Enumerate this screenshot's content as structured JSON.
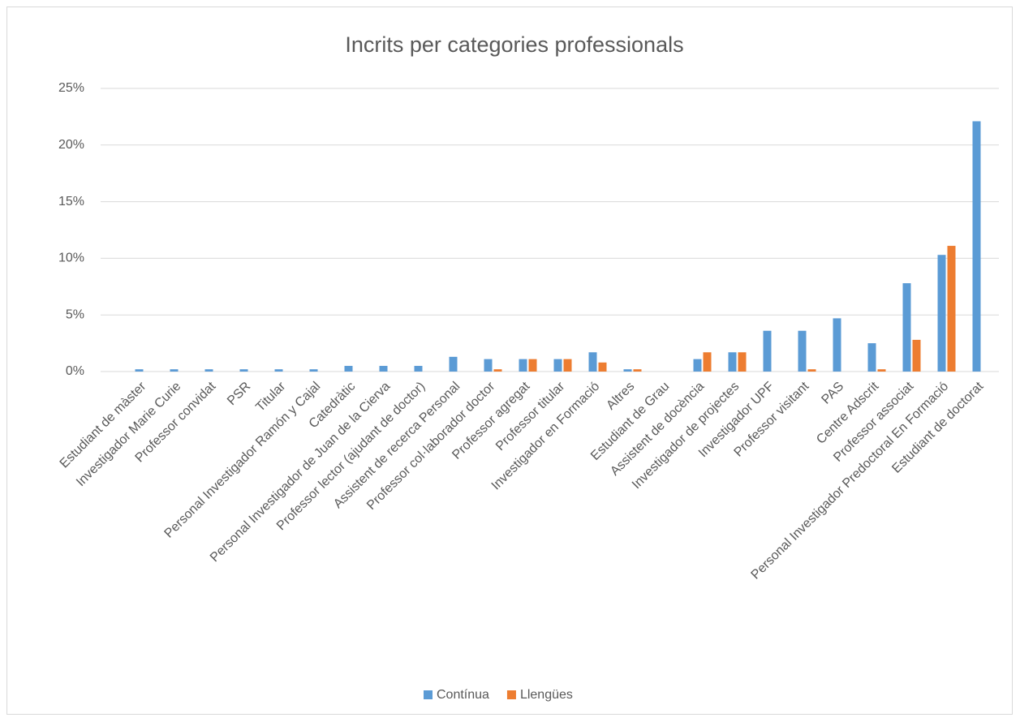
{
  "chart_data": {
    "type": "bar",
    "title": "Incrits per categories professionals",
    "categories": [
      "Estudiant de màster",
      "Investigador Marie Curie",
      "Professor convidat",
      "PSR",
      "Titular",
      "Personal Investigador Ramón y Cajal",
      "Catedràtic",
      "Personal Investigador de Juan de la Cierva",
      "Professor lector (ajudant de doctor)",
      "Assistent de recerca Personal",
      "Professor col·laborador doctor",
      "Professor agregat",
      "Professor titular",
      "Investigador en Formació",
      "Altres",
      "Estudiant de Grau",
      "Assistent de docència",
      "Investigador de projectes",
      "Investigador UPF",
      "Professor visitant",
      "PAS",
      "Centre Adscrit",
      "Professor associat",
      "Personal Investigador Predoctoral En Formació",
      "Estudiant de doctorat"
    ],
    "series": [
      {
        "name": "Contínua",
        "color": "#5b9bd5",
        "values": [
          0.2,
          0.2,
          0.2,
          0.2,
          0.2,
          0.2,
          0.5,
          0.5,
          0.5,
          1.3,
          1.1,
          1.1,
          1.1,
          1.7,
          0.2,
          0,
          1.1,
          1.7,
          3.6,
          3.6,
          4.7,
          2.5,
          7.8,
          10.3,
          22.1
        ]
      },
      {
        "name": "Llengües",
        "color": "#ed7d31",
        "values": [
          0,
          0,
          0,
          0,
          0,
          0,
          0,
          0,
          0,
          0,
          0.2,
          1.1,
          1.1,
          0.8,
          0.2,
          0,
          1.7,
          1.7,
          0,
          0.2,
          0,
          0.2,
          2.8,
          11.1,
          0
        ]
      }
    ],
    "ylim": [
      0,
      25
    ],
    "yticks": [
      {
        "value": 0,
        "label": "0%"
      },
      {
        "value": 5,
        "label": "5%"
      },
      {
        "value": 10,
        "label": "10%"
      },
      {
        "value": 15,
        "label": "15%"
      },
      {
        "value": 20,
        "label": "20%"
      },
      {
        "value": 25,
        "label": "25%"
      }
    ],
    "grid": true,
    "legend": "bottom"
  }
}
